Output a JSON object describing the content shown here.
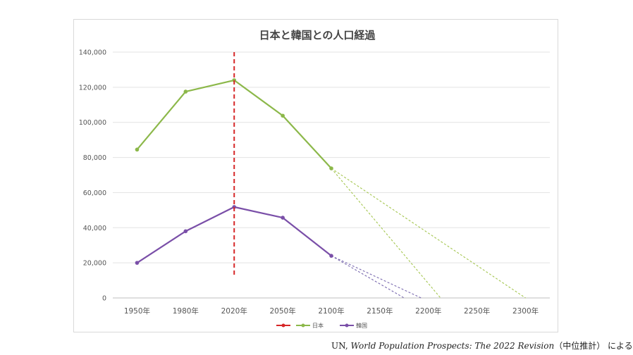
{
  "chart_data": {
    "type": "line",
    "title": "日本と韓国との人口経過",
    "xlabel": "",
    "ylabel": "",
    "ylim": [
      0,
      140000
    ],
    "yticks": [
      0,
      20000,
      40000,
      60000,
      80000,
      100000,
      120000,
      140000
    ],
    "ytick_labels": [
      "0",
      "20,000",
      "40,000",
      "60,000",
      "80,000",
      "100,000",
      "120,000",
      "140,000"
    ],
    "categories": [
      "1950年",
      "1980年",
      "2020年",
      "2050年",
      "2100年",
      "2150年",
      "2200年",
      "2250年",
      "2300年"
    ],
    "grid": true,
    "legend_position": "bottom",
    "series": [
      {
        "name": "",
        "color": "#d62728",
        "style": "dashed",
        "marker_in_legend": true
      },
      {
        "name": "日本",
        "color": "#8cb84a",
        "points": [
          [
            0,
            84500
          ],
          [
            1,
            117500
          ],
          [
            2,
            124000
          ],
          [
            3,
            103800
          ],
          [
            4,
            73800
          ]
        ]
      },
      {
        "name": "韓国",
        "color": "#7a4fa8",
        "points": [
          [
            0,
            20000
          ],
          [
            1,
            38000
          ],
          [
            2,
            51800
          ],
          [
            3,
            45700
          ],
          [
            4,
            24000
          ]
        ]
      }
    ],
    "projection_lines": [
      {
        "series": "日本",
        "color": "#a4c64f",
        "points": [
          [
            4,
            73800
          ],
          [
            8,
            0
          ]
        ]
      },
      {
        "series": "日本",
        "color": "#a4c64f",
        "points": [
          [
            4,
            73800
          ],
          [
            6.25,
            0
          ]
        ]
      },
      {
        "series": "韓国",
        "color": "#7a6aaf",
        "points": [
          [
            4,
            24000
          ],
          [
            5.85,
            0
          ]
        ]
      },
      {
        "series": "韓国",
        "color": "#7a6aaf",
        "points": [
          [
            4,
            24000
          ],
          [
            5.5,
            0
          ]
        ]
      }
    ],
    "reference_line": {
      "x": 2,
      "y_from": 12000,
      "y_to": 140000,
      "color": "#d62728"
    }
  },
  "source": {
    "prefix": "UN, ",
    "title": "World Population Prospects: The 2022 Revision",
    "suffix": "（中位推計） による"
  }
}
